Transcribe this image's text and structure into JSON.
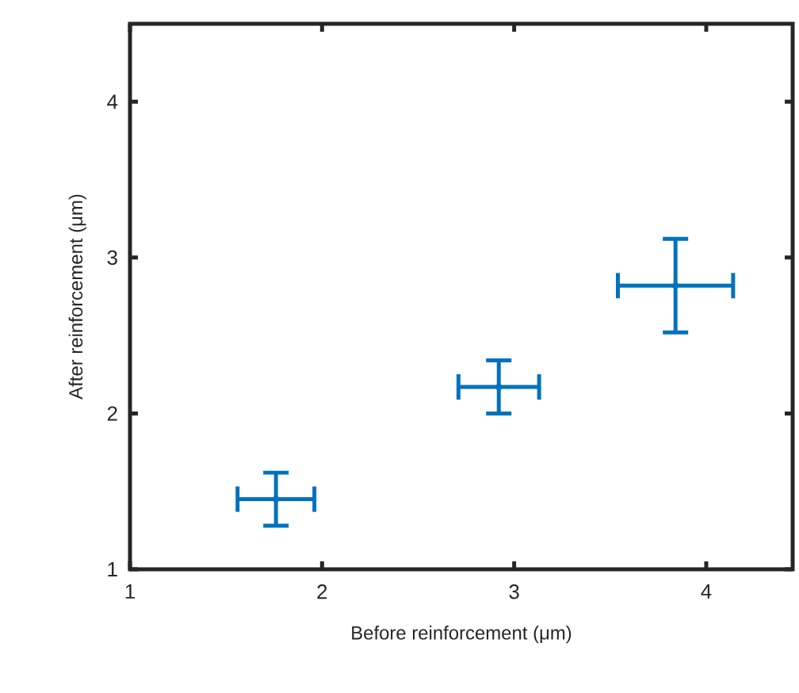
{
  "chart_data": {
    "type": "scatter",
    "xlabel": "Before reinforcement (μm)",
    "ylabel": "After reinforcement (μm)",
    "x": [
      1.76,
      2.92,
      3.84
    ],
    "series": [
      {
        "color": "#0072bd",
        "values": [
          1.45,
          2.17,
          2.82
        ],
        "errors": [
          0.17,
          0.17,
          0.3
        ],
        "xerrors": [
          0.2,
          0.21,
          0.3
        ]
      }
    ],
    "xlim": [
      1,
      4.45
    ],
    "ylim": [
      1,
      4.5
    ],
    "xticks": [
      1,
      2,
      3,
      4
    ],
    "yticks": [
      1,
      2,
      3,
      4
    ],
    "grid": false
  }
}
